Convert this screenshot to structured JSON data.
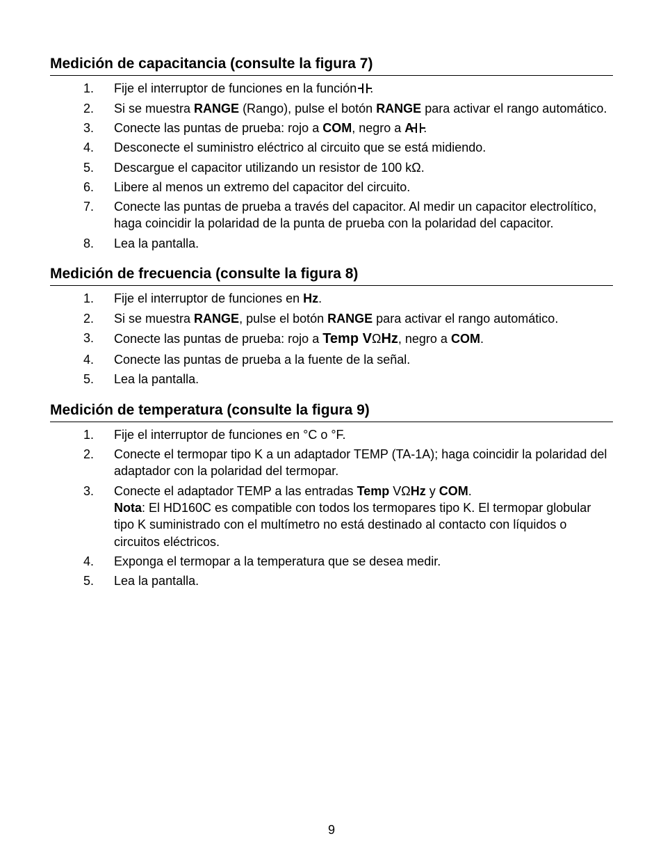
{
  "page_number": "9",
  "sections": [
    {
      "heading": "Medición de capacitancia (consulte la figura 7)",
      "items": [
        {
          "n": "1.",
          "segs": [
            {
              "t": "Fije el interruptor de funciones en la función "
            },
            {
              "icon": "cap"
            },
            {
              "t": "."
            }
          ]
        },
        {
          "n": "2.",
          "segs": [
            {
              "t": "Si se muestra "
            },
            {
              "t": "RANGE",
              "b": true
            },
            {
              "t": " (Rango), pulse el botón "
            },
            {
              "t": "RANGE",
              "b": true
            },
            {
              "t": " para activar el rango automático."
            }
          ]
        },
        {
          "n": "3.",
          "segs": [
            {
              "t": "Conecte las puntas de prueba: rojo a "
            },
            {
              "t": "COM",
              "b": true
            },
            {
              "t": ", negro a "
            },
            {
              "t": "A",
              "b": true
            },
            {
              "icon": "cap"
            },
            {
              "t": "."
            }
          ]
        },
        {
          "n": "4.",
          "segs": [
            {
              "t": "Desconecte el suministro eléctrico al circuito que se está midiendo."
            }
          ]
        },
        {
          "n": "5.",
          "segs": [
            {
              "t": "Descargue el capacitor utilizando un resistor de 100 kΩ."
            }
          ]
        },
        {
          "n": "6.",
          "segs": [
            {
              "t": "Libere al menos un extremo del capacitor del circuito."
            }
          ]
        },
        {
          "n": "7.",
          "segs": [
            {
              "t": "Conecte las puntas de prueba a través del capacitor. Al medir un capacitor electrolítico, haga coincidir la polaridad de la punta de prueba con la polaridad del capacitor."
            }
          ]
        },
        {
          "n": "8.",
          "segs": [
            {
              "t": "Lea la pantalla."
            }
          ]
        }
      ]
    },
    {
      "heading": "Medición de frecuencia (consulte la figura 8)",
      "items": [
        {
          "n": "1.",
          "segs": [
            {
              "t": "Fije el interruptor de funciones en "
            },
            {
              "t": "Hz",
              "b": true
            },
            {
              "t": "."
            }
          ]
        },
        {
          "n": "2.",
          "segs": [
            {
              "t": "Si se muestra "
            },
            {
              "t": "RANGE",
              "b": true
            },
            {
              "t": ", pulse el botón "
            },
            {
              "t": "RANGE",
              "b": true
            },
            {
              "t": " para activar el rango automático."
            }
          ]
        },
        {
          "n": "3.",
          "segs": [
            {
              "t": "Conecte las puntas de prueba: rojo a "
            },
            {
              "t": "Temp V",
              "b": true,
              "big": true
            },
            {
              "t": "Ω"
            },
            {
              "t": "Hz",
              "b": true,
              "big": true
            },
            {
              "t": ", negro a "
            },
            {
              "t": "COM",
              "b": true
            },
            {
              "t": "."
            }
          ]
        },
        {
          "n": "4.",
          "segs": [
            {
              "t": "Conecte las puntas de prueba a la fuente de la señal."
            }
          ]
        },
        {
          "n": "5.",
          "segs": [
            {
              "t": "Lea la pantalla."
            }
          ]
        }
      ]
    },
    {
      "heading": "Medición de temperatura (consulte la figura 9)",
      "items": [
        {
          "n": "1.",
          "segs": [
            {
              "t": "Fije el interruptor de funciones en °C o °F."
            }
          ]
        },
        {
          "n": "2.",
          "segs": [
            {
              "t": "Conecte el termopar tipo K a un adaptador TEMP (TA-1A); haga coincidir la polaridad del adaptador con la polaridad del termopar."
            }
          ]
        },
        {
          "n": "3.",
          "segs": [
            {
              "t": "Conecte el adaptador TEMP a las entradas "
            },
            {
              "t": "Temp ",
              "b": true
            },
            {
              "t": "VΩ"
            },
            {
              "t": "Hz",
              "b": true
            },
            {
              "t": " y "
            },
            {
              "t": "COM",
              "b": true
            },
            {
              "t": "."
            },
            {
              "br": true
            },
            {
              "t": "Nota",
              "b": true
            },
            {
              "t": ": El HD160C es compatible con todos los termopares tipo K. El termopar globular tipo K suministrado con el multímetro no está destinado al contacto con líquidos o"
            },
            {
              "br": true
            },
            {
              "t": "circuitos eléctricos."
            }
          ]
        },
        {
          "n": "4.",
          "segs": [
            {
              "t": "Exponga el termopar a la temperatura que se desea medir."
            }
          ]
        },
        {
          "n": "5.",
          "segs": [
            {
              "t": "Lea la pantalla."
            }
          ]
        }
      ]
    }
  ]
}
